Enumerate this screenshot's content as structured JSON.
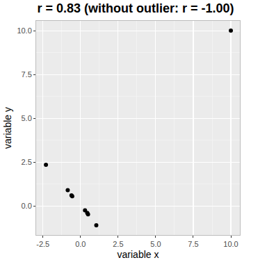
{
  "chart_data": {
    "type": "scatter",
    "title": "r = 0.83 (without outlier: r = -1.00)",
    "x_label": "variable x",
    "y_label": "variable y",
    "x": [
      -2.3,
      -0.85,
      -0.6,
      -0.55,
      0.3,
      0.45,
      0.5,
      1.05,
      10
    ],
    "values": [
      2.35,
      0.9,
      0.6,
      0.55,
      -0.25,
      -0.4,
      -0.48,
      -1.1,
      10
    ],
    "color": "#000000",
    "marker": "circle",
    "xlim": [
      -2.95,
      10.6
    ],
    "ylim": [
      -1.66,
      10.56
    ],
    "xticks": [
      -2.5,
      {
        "value": 0,
        "label": "0.0"
      },
      2.5,
      {
        "value": 5,
        "label": "5.0"
      },
      7.5,
      {
        "value": 10,
        "label": "10.0"
      }
    ],
    "yticks": [
      {
        "value": 0,
        "label": "0.0"
      },
      2.5,
      {
        "value": 5,
        "label": "5.0"
      },
      7.5,
      {
        "value": 10,
        "label": "10.0"
      }
    ],
    "grid": true
  }
}
